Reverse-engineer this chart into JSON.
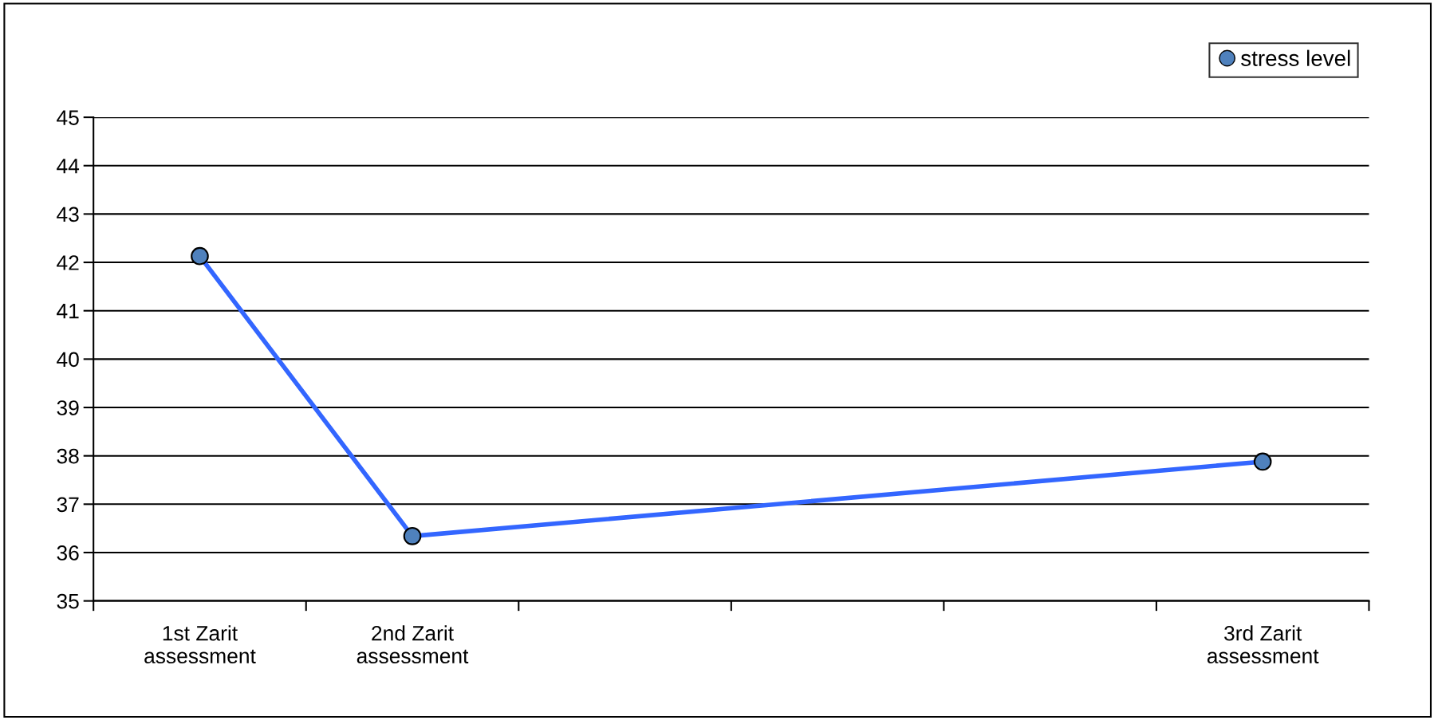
{
  "chart_data": {
    "type": "line",
    "categories": [
      "1st Zarit\nassessment",
      "2nd Zarit\nassessment",
      null,
      null,
      null,
      "3rd Zarit\nassessment"
    ],
    "series": [
      {
        "name": "stress level",
        "color": "#3366ff",
        "colors": [
          "#4f81bd",
          "#4f81bd",
          "#4f81bd",
          "#4f81bd",
          "#4f81bd",
          "#4f81bd"
        ],
        "values": [
          42.13,
          36.34,
          null,
          null,
          null,
          37.88
        ]
      }
    ],
    "ylim": [
      35,
      45
    ],
    "yticks": [
      35,
      36,
      37,
      38,
      39,
      40,
      41,
      42,
      43,
      44,
      45
    ],
    "grid": "y",
    "legend": "top right",
    "marker": "circle",
    "line_style": "solid"
  }
}
